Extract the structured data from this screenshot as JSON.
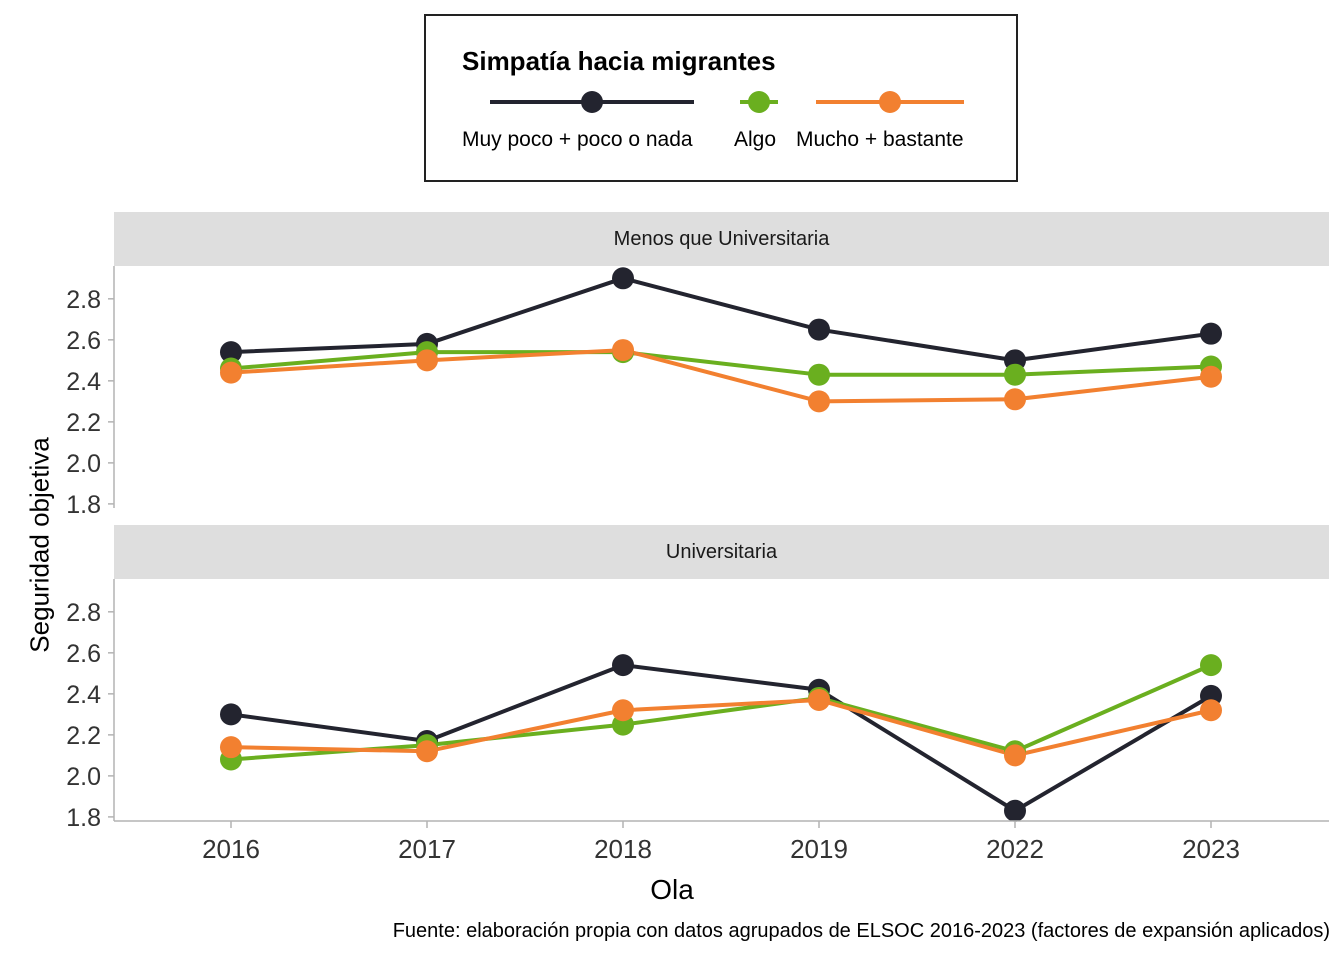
{
  "legend": {
    "title": "Simpatía hacia migrantes",
    "items": [
      {
        "label": "Muy poco + poco o nada",
        "color": "#23242f"
      },
      {
        "label": "Algo",
        "color": "#6aaf1f"
      },
      {
        "label": "Mucho + bastante",
        "color": "#f28030"
      }
    ]
  },
  "axes": {
    "xlabel": "Ola",
    "ylabel": "Seguridad objetiva"
  },
  "caption": "Fuente: elaboración propia con datos agrupados de ELSOC 2016-2023 (factores de expansión aplicados)",
  "chart_data": {
    "type": "line",
    "categories": [
      "2016",
      "2017",
      "2018",
      "2019",
      "2022",
      "2023"
    ],
    "ylim": [
      1.78,
      2.96
    ],
    "yticks": [
      1.8,
      2.0,
      2.2,
      2.4,
      2.6,
      2.8
    ],
    "ytick_labels": [
      "1.8",
      "2.0",
      "2.2",
      "2.4",
      "2.6",
      "2.8"
    ],
    "grid": false,
    "legend_position": "top",
    "panels": [
      {
        "title": "Menos que Universitaria",
        "series": [
          {
            "name": "Muy poco + poco o nada",
            "color": "#23242f",
            "values": [
              2.54,
              2.58,
              2.9,
              2.65,
              2.5,
              2.63
            ]
          },
          {
            "name": "Algo",
            "color": "#6aaf1f",
            "values": [
              2.46,
              2.54,
              2.54,
              2.43,
              2.43,
              2.47
            ]
          },
          {
            "name": "Mucho + bastante",
            "color": "#f28030",
            "values": [
              2.44,
              2.5,
              2.55,
              2.3,
              2.31,
              2.42
            ]
          }
        ]
      },
      {
        "title": "Universitaria",
        "series": [
          {
            "name": "Muy poco + poco o nada",
            "color": "#23242f",
            "values": [
              2.3,
              2.17,
              2.54,
              2.42,
              1.83,
              2.39
            ]
          },
          {
            "name": "Algo",
            "color": "#6aaf1f",
            "values": [
              2.08,
              2.15,
              2.25,
              2.38,
              2.12,
              2.54
            ]
          },
          {
            "name": "Mucho + bastante",
            "color": "#f28030",
            "values": [
              2.14,
              2.12,
              2.32,
              2.37,
              2.1,
              2.32
            ]
          }
        ]
      }
    ]
  }
}
